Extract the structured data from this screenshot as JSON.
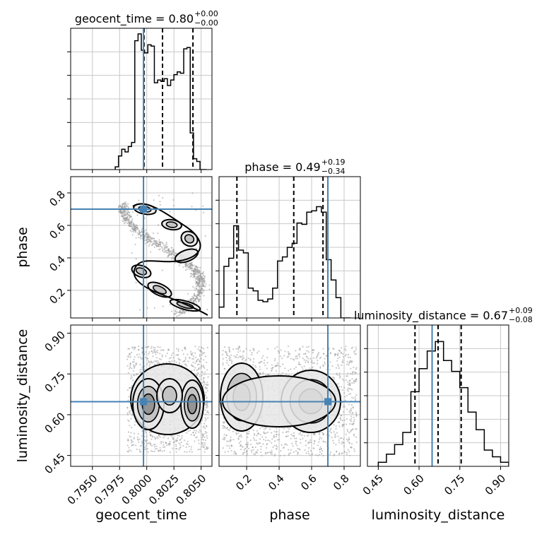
{
  "chart_data": {
    "type": "corner",
    "parameters": [
      "geocent_time",
      "phase",
      "luminosity_distance"
    ],
    "truths": {
      "geocent_time": 0.7997,
      "phase": 0.7,
      "luminosity_distance": 0.648
    },
    "ranges": {
      "geocent_time": [
        0.793,
        0.806
      ],
      "phase": [
        0.03,
        0.9
      ],
      "luminosity_distance": [
        0.41,
        0.93
      ]
    },
    "ticks": {
      "geocent_time": [
        0.795,
        0.7975,
        0.8,
        0.8025,
        0.805
      ],
      "phase": [
        0.2,
        0.4,
        0.6,
        0.8
      ],
      "luminosity_distance": [
        0.45,
        0.6,
        0.75,
        0.9
      ]
    },
    "tick_labels": {
      "geocent_time": [
        "0.7950",
        "0.7975",
        "0.8000",
        "0.8025",
        "0.8050"
      ],
      "phase": [
        "0.2",
        "0.4",
        "0.6",
        "0.8"
      ],
      "luminosity_distance": [
        "0.45",
        "0.60",
        "0.75",
        "0.90"
      ]
    },
    "titles": {
      "geocent_time": {
        "param": "geocent_time",
        "median": "0.80",
        "plus": "+0.00",
        "minus": "−0.00"
      },
      "phase": {
        "param": "phase",
        "median": "0.49",
        "plus": "+0.19",
        "minus": "−0.34"
      },
      "luminosity_distance": {
        "param": "luminosity_distance",
        "median": "0.67",
        "plus": "+0.09",
        "minus": "−0.08"
      }
    },
    "quantiles": {
      "geocent_time": [
        0.79975,
        0.80145,
        0.80425
      ],
      "phase": [
        0.14,
        0.49,
        0.67
      ],
      "luminosity_distance": [
        0.585,
        0.67,
        0.755
      ]
    },
    "histograms": {
      "geocent_time": {
        "edges": [
          0.7971,
          0.7974,
          0.7977,
          0.798,
          0.7983,
          0.7986,
          0.7989,
          0.7992,
          0.7995,
          0.7998,
          0.8001,
          0.8004,
          0.8007,
          0.801,
          0.8013,
          0.8016,
          0.8019,
          0.8022,
          0.8025,
          0.8028,
          0.8031,
          0.8034,
          0.8037,
          0.804,
          0.8043,
          0.8046,
          0.8049,
          0.8052,
          0.8055
        ],
        "counts": [
          0.02,
          0.1,
          0.15,
          0.13,
          0.17,
          0.2,
          0.95,
          1.0,
          0.88,
          0.86,
          0.92,
          0.91,
          0.64,
          0.66,
          0.65,
          0.67,
          0.62,
          0.66,
          0.7,
          0.72,
          0.71,
          0.89,
          0.9,
          0.27,
          0.08,
          0.06,
          0.0,
          0.0
        ]
      },
      "phase": {
        "edges": [
          0.03,
          0.06,
          0.09,
          0.12,
          0.15,
          0.18,
          0.21,
          0.24,
          0.27,
          0.3,
          0.33,
          0.36,
          0.39,
          0.42,
          0.45,
          0.48,
          0.51,
          0.54,
          0.57,
          0.6,
          0.63,
          0.66,
          0.69,
          0.72,
          0.75,
          0.78,
          0.81,
          0.84
        ],
        "counts": [
          0.08,
          0.38,
          0.44,
          0.68,
          0.5,
          0.48,
          0.22,
          0.2,
          0.13,
          0.12,
          0.14,
          0.22,
          0.42,
          0.45,
          0.52,
          0.55,
          0.7,
          0.69,
          0.78,
          0.79,
          0.82,
          0.78,
          0.43,
          0.28,
          0.15,
          0.0,
          0.0
        ]
      },
      "luminosity_distance": {
        "edges": [
          0.45,
          0.48,
          0.51,
          0.54,
          0.57,
          0.6,
          0.63,
          0.66,
          0.69,
          0.72,
          0.75,
          0.78,
          0.81,
          0.84,
          0.87,
          0.9,
          0.93
        ],
        "counts": [
          0.03,
          0.09,
          0.16,
          0.25,
          0.55,
          0.72,
          0.85,
          0.92,
          0.78,
          0.7,
          0.58,
          0.4,
          0.27,
          0.12,
          0.07,
          0.03
        ]
      }
    },
    "sample_scatter": "grey points behind contour levels"
  }
}
